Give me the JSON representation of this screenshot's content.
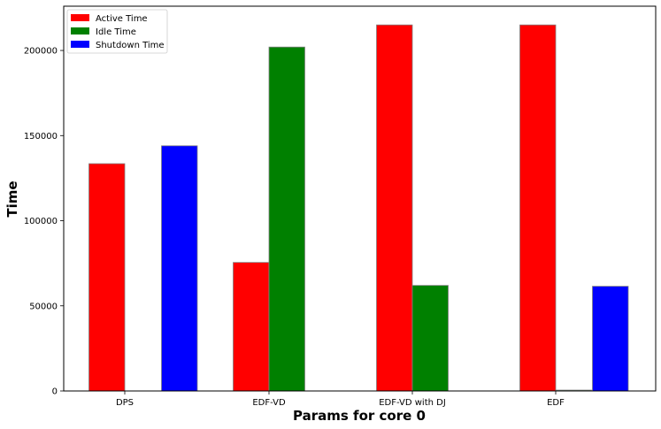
{
  "chart_data": {
    "type": "bar",
    "categories": [
      "DPS",
      "EDF-VD",
      "EDF-VD with DJ",
      "EDF"
    ],
    "series": [
      {
        "name": "Active Time",
        "color": "#ff0000",
        "values": [
          133500,
          75500,
          215000,
          215000
        ]
      },
      {
        "name": "Idle Time",
        "color": "#008000",
        "values": [
          0,
          202000,
          62000,
          500
        ]
      },
      {
        "name": "Shutdown Time",
        "color": "#0000ff",
        "values": [
          144000,
          0,
          0,
          61500
        ]
      }
    ],
    "xlabel": "Params for core 0",
    "ylabel": "Time",
    "ylim": [
      0,
      226000
    ],
    "yticks": [
      0,
      50000,
      100000,
      150000,
      200000
    ],
    "grid": false,
    "legend": "top-left"
  }
}
